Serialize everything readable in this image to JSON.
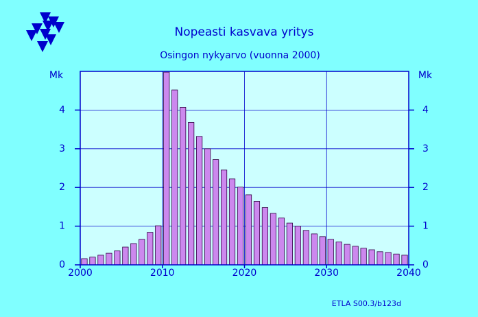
{
  "chart_data": {
    "type": "bar",
    "title": "Nopeasti  kasvava  yritys",
    "subtitle": "Osingon nykyarvo (vuonna 2000)",
    "y_label": "Mk",
    "source": "ETLA S00.3/b123d",
    "x": [
      2000,
      2001,
      2002,
      2003,
      2004,
      2005,
      2006,
      2007,
      2008,
      2009,
      2010,
      2011,
      2012,
      2013,
      2014,
      2015,
      2016,
      2017,
      2018,
      2019,
      2020,
      2021,
      2022,
      2023,
      2024,
      2025,
      2026,
      2027,
      2028,
      2029,
      2030,
      2031,
      2032,
      2033,
      2034,
      2035,
      2036,
      2037,
      2038,
      2039
    ],
    "values": [
      0.16,
      0.2,
      0.25,
      0.3,
      0.36,
      0.46,
      0.55,
      0.66,
      0.84,
      1.01,
      4.98,
      4.52,
      4.07,
      3.68,
      3.32,
      3.0,
      2.72,
      2.45,
      2.22,
      2.01,
      1.81,
      1.64,
      1.48,
      1.33,
      1.21,
      1.08,
      1.0,
      0.89,
      0.8,
      0.73,
      0.66,
      0.59,
      0.53,
      0.48,
      0.43,
      0.39,
      0.34,
      0.32,
      0.28,
      0.25
    ],
    "color": "#cc88ee",
    "xlim": [
      2000,
      2040
    ],
    "xticks": [
      2000,
      2010,
      2020,
      2030,
      2040
    ],
    "ylim": [
      0,
      5
    ],
    "yticks": [
      0,
      1,
      2,
      3,
      4
    ],
    "grid": true
  }
}
